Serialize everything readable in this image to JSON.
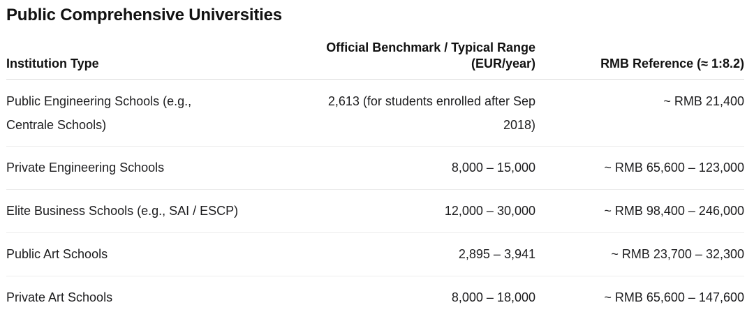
{
  "section": {
    "title": "Public Comprehensive Universities"
  },
  "table": {
    "headers": {
      "institution_type": "Institution Type",
      "benchmark_line1": "Official Benchmark / Typical Range",
      "benchmark_line2": "(EUR/year)",
      "rmb_reference": "RMB Reference (≈ 1:8.2)"
    },
    "rows": [
      {
        "type_line1": "Public Engineering Schools (e.g.,",
        "type_line2": "Centrale Schools)",
        "eur_line1": "2,613 (for students enrolled after Sep",
        "eur_line2": "2018)",
        "rmb": "~ RMB 21,400"
      },
      {
        "type": "Private Engineering Schools",
        "eur": "8,000 – 15,000",
        "rmb": "~ RMB 65,600 – 123,000"
      },
      {
        "type": "Elite Business Schools (e.g., SAI / ESCP)",
        "eur": "12,000 – 30,000",
        "rmb": "~ RMB 98,400 – 246,000"
      },
      {
        "type": "Public Art Schools",
        "eur": "2,895 – 3,941",
        "rmb": "~ RMB 23,700 – 32,300"
      },
      {
        "type": "Private Art Schools",
        "eur": "8,000 – 18,000",
        "rmb": "~ RMB 65,600 – 147,600"
      }
    ]
  }
}
